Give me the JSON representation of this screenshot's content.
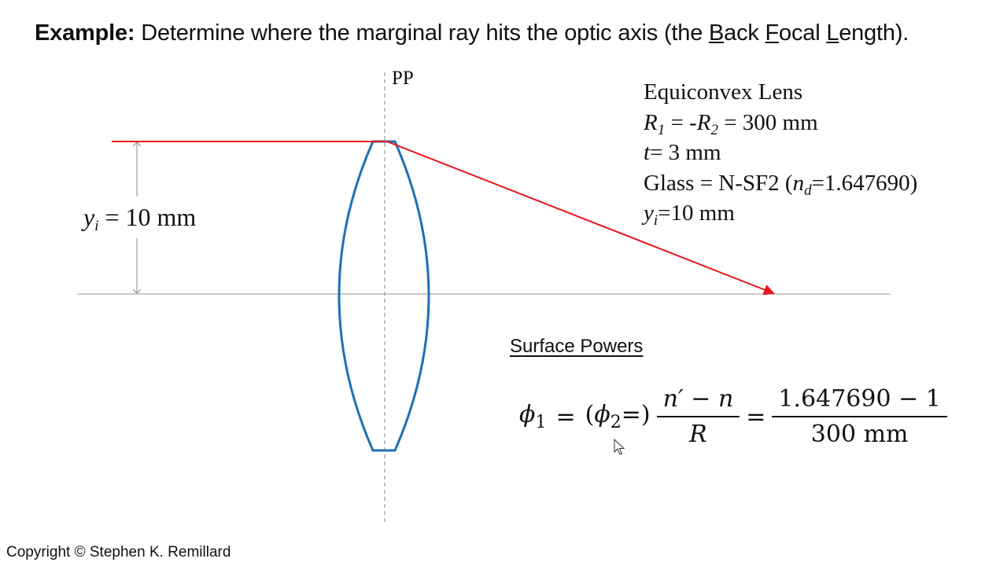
{
  "title": {
    "lead": "Example:",
    "text_1": " Determine where the marginal ray hits the optic axis (the ",
    "b_letter": "B",
    "b_rest": "ack ",
    "f_letter": "F",
    "f_rest": "ocal ",
    "l_letter": "L",
    "l_rest": "ength)."
  },
  "diagram": {
    "pp_label": "PP",
    "yi_label": {
      "sym": "y",
      "sub": "i",
      "rest": " = 10 mm"
    },
    "colors": {
      "ray": "#e8151b",
      "lens": "#1f6fb5",
      "axis": "#b9b9b9",
      "dashed": "#999999",
      "arrow": "#8c8c8c"
    }
  },
  "specs": {
    "line1": "Equiconvex Lens",
    "line2": {
      "r1": "R",
      "r1_sub": "1",
      "mid": " = -",
      "r2": "R",
      "r2_sub": "2",
      "rest": " = 300 mm"
    },
    "line3": {
      "t": "t",
      "rest": "= 3 mm"
    },
    "line4": {
      "pre": "Glass = N-SF2  (",
      "n": "n",
      "n_sub": "d",
      "rest": "=1.647690)"
    },
    "line5": {
      "y": "y",
      "y_sub": "i",
      "rest": "=10 mm"
    }
  },
  "surface": {
    "heading": "Surface Powers",
    "eq": {
      "phi1": "ϕ",
      "phi1_sub": "1",
      "eq1": "=",
      "paren_open": "(",
      "phi2": "ϕ",
      "phi2_sub": "2",
      "paren_close": "=)",
      "num1": "n′ − n",
      "den1": "R",
      "eq2": "=",
      "num2": "1.647690 − 1",
      "den2": "300 mm"
    }
  },
  "footer": {
    "copyright": "Copyright © Stephen K. Remillard"
  }
}
